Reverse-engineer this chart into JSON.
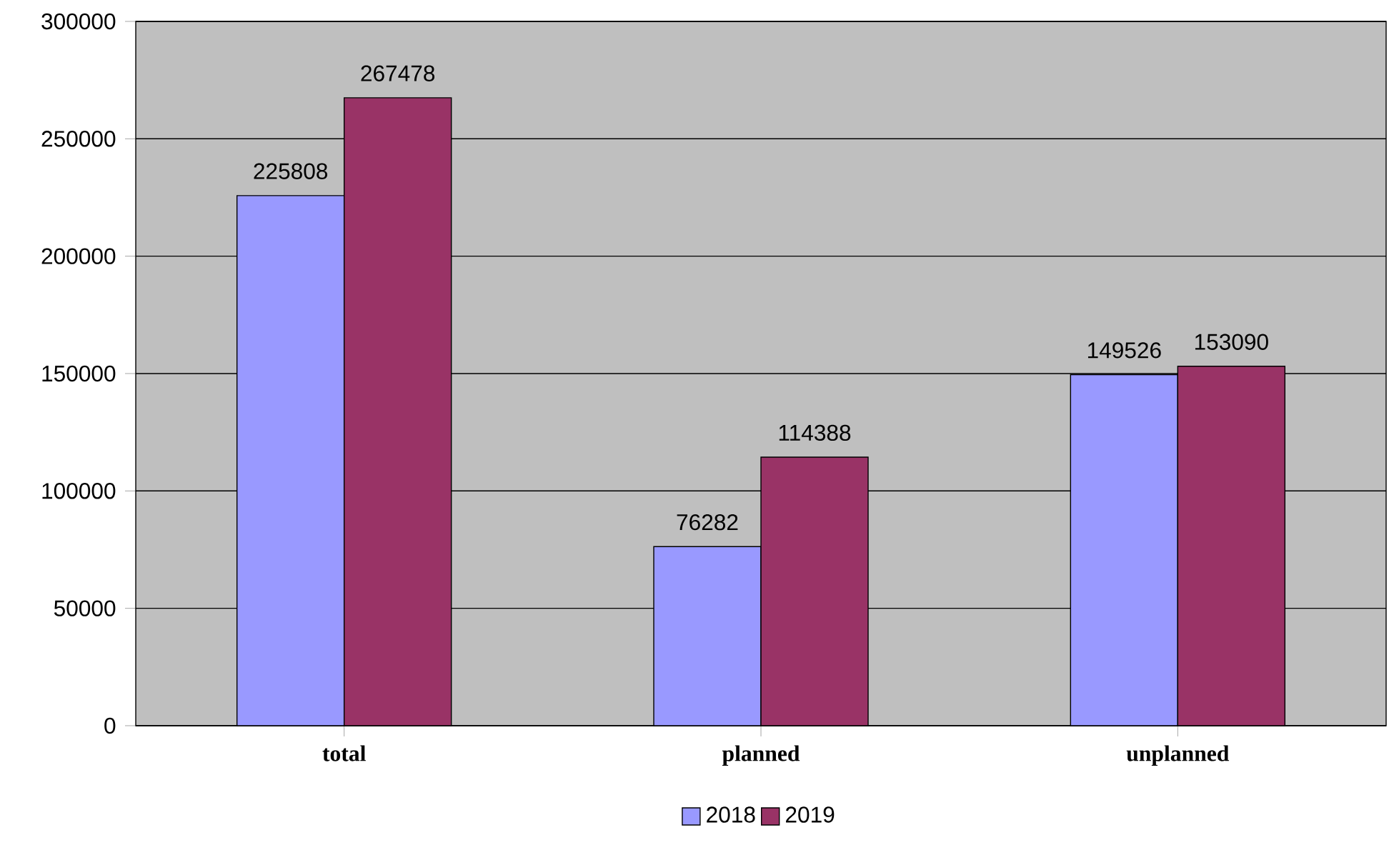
{
  "chart_data": {
    "type": "bar",
    "categories": [
      "total",
      "planned",
      "unplanned"
    ],
    "series": [
      {
        "name": "2018",
        "color": "#9999ff",
        "values": [
          225808,
          76282,
          149526
        ],
        "value_labels": [
          "225808",
          "76282",
          "149526"
        ]
      },
      {
        "name": "2019",
        "color": "#993366",
        "values": [
          267478,
          114388,
          153090
        ],
        "value_labels": [
          "267478",
          "114388",
          "153090"
        ]
      }
    ],
    "ylim": [
      0,
      300000
    ],
    "yticks": [
      0,
      50000,
      100000,
      150000,
      200000,
      250000,
      300000
    ],
    "grid": "y",
    "legend": "bottom"
  }
}
